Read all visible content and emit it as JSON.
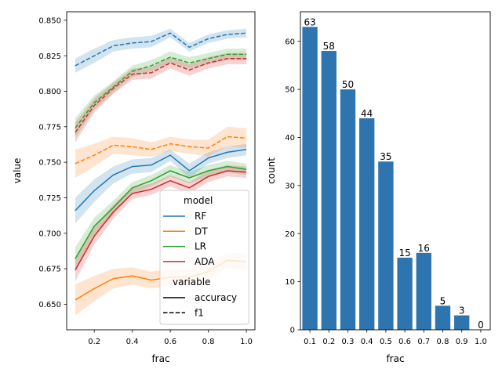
{
  "chart_data": [
    {
      "type": "line",
      "xlabel": "frac",
      "ylabel": "value",
      "xlim": [
        0.055,
        1.045
      ],
      "ylim": [
        0.632,
        0.856
      ],
      "xticks": [
        0.2,
        0.4,
        0.6,
        0.8,
        1.0
      ],
      "xtick_labels": [
        "0.2",
        "0.4",
        "0.6",
        "0.8",
        "1.0"
      ],
      "yticks": [
        0.65,
        0.675,
        0.7,
        0.725,
        0.75,
        0.775,
        0.8,
        0.825,
        0.85
      ],
      "ytick_labels": [
        "0.650",
        "0.675",
        "0.700",
        "0.725",
        "0.750",
        "0.775",
        "0.800",
        "0.825",
        "0.850"
      ],
      "x": [
        0.1,
        0.2,
        0.3,
        0.4,
        0.5,
        0.6,
        0.7,
        0.8,
        0.9,
        1.0
      ],
      "series": [
        {
          "model": "RF",
          "variable": "accuracy",
          "color": "#1f77b4",
          "dash": false,
          "values": [
            0.716,
            0.73,
            0.741,
            0.747,
            0.748,
            0.755,
            0.744,
            0.753,
            0.757,
            0.759
          ],
          "ci": [
            0.009,
            0.008,
            0.006,
            0.005,
            0.005,
            0.004,
            0.005,
            0.004,
            0.004,
            0.004
          ]
        },
        {
          "model": "RF",
          "variable": "f1",
          "color": "#1f77b4",
          "dash": true,
          "values": [
            0.818,
            0.825,
            0.832,
            0.834,
            0.835,
            0.841,
            0.831,
            0.837,
            0.84,
            0.841
          ],
          "ci": [
            0.005,
            0.005,
            0.004,
            0.004,
            0.004,
            0.003,
            0.003,
            0.003,
            0.003,
            0.003
          ]
        },
        {
          "model": "DT",
          "variable": "accuracy",
          "color": "#ff7f0e",
          "dash": false,
          "values": [
            0.653,
            0.661,
            0.668,
            0.67,
            0.667,
            0.669,
            0.669,
            0.673,
            0.681,
            0.68
          ],
          "ci": [
            0.011,
            0.009,
            0.007,
            0.006,
            0.006,
            0.006,
            0.006,
            0.006,
            0.005,
            0.006
          ]
        },
        {
          "model": "DT",
          "variable": "f1",
          "color": "#ff7f0e",
          "dash": true,
          "values": [
            0.749,
            0.755,
            0.762,
            0.761,
            0.759,
            0.763,
            0.761,
            0.76,
            0.768,
            0.767
          ],
          "ci": [
            0.01,
            0.008,
            0.006,
            0.006,
            0.005,
            0.005,
            0.005,
            0.006,
            0.007,
            0.007
          ]
        },
        {
          "model": "LR",
          "variable": "accuracy",
          "color": "#2ca02c",
          "dash": false,
          "values": [
            0.682,
            0.705,
            0.718,
            0.732,
            0.737,
            0.744,
            0.739,
            0.744,
            0.747,
            0.745
          ],
          "ci": [
            0.008,
            0.006,
            0.005,
            0.004,
            0.004,
            0.004,
            0.004,
            0.004,
            0.004,
            0.004
          ]
        },
        {
          "model": "LR",
          "variable": "f1",
          "color": "#2ca02c",
          "dash": true,
          "values": [
            0.774,
            0.792,
            0.803,
            0.814,
            0.818,
            0.824,
            0.82,
            0.823,
            0.826,
            0.826
          ],
          "ci": [
            0.007,
            0.005,
            0.004,
            0.004,
            0.004,
            0.004,
            0.004,
            0.004,
            0.004,
            0.004
          ]
        },
        {
          "model": "ADA",
          "variable": "accuracy",
          "color": "#d62728",
          "dash": false,
          "values": [
            0.674,
            0.698,
            0.715,
            0.728,
            0.731,
            0.737,
            0.732,
            0.74,
            0.744,
            0.743
          ],
          "ci": [
            0.008,
            0.006,
            0.005,
            0.004,
            0.004,
            0.004,
            0.004,
            0.004,
            0.004,
            0.004
          ]
        },
        {
          "model": "ADA",
          "variable": "f1",
          "color": "#d62728",
          "dash": true,
          "values": [
            0.771,
            0.79,
            0.802,
            0.812,
            0.813,
            0.82,
            0.815,
            0.82,
            0.823,
            0.823
          ],
          "ci": [
            0.007,
            0.005,
            0.004,
            0.004,
            0.004,
            0.004,
            0.004,
            0.004,
            0.004,
            0.004
          ]
        }
      ],
      "legend": {
        "placement": "lower-right",
        "model_title": "model",
        "models": [
          {
            "label": "RF",
            "color": "#1f77b4"
          },
          {
            "label": "DT",
            "color": "#ff7f0e"
          },
          {
            "label": "LR",
            "color": "#2ca02c"
          },
          {
            "label": "ADA",
            "color": "#d62728"
          }
        ],
        "variable_title": "variable",
        "variables": [
          {
            "label": "accuracy",
            "dash": false
          },
          {
            "label": "f1",
            "dash": true
          }
        ]
      }
    },
    {
      "type": "bar",
      "xlabel": "frac",
      "ylabel": "count",
      "ylim": [
        0,
        66.15
      ],
      "yticks": [
        0,
        10,
        20,
        30,
        40,
        50,
        60
      ],
      "ytick_labels": [
        "0",
        "10",
        "20",
        "30",
        "40",
        "50",
        "60"
      ],
      "categories": [
        "0.1",
        "0.2",
        "0.3",
        "0.4",
        "0.5",
        "0.6",
        "0.7",
        "0.8",
        "0.9",
        "1.0"
      ],
      "values": [
        63,
        58,
        50,
        44,
        35,
        15,
        16,
        5,
        3,
        0
      ],
      "value_labels": [
        "63",
        "58",
        "50",
        "44",
        "35",
        "15",
        "16",
        "5",
        "3",
        "0"
      ],
      "color": "#2e75b0"
    }
  ]
}
